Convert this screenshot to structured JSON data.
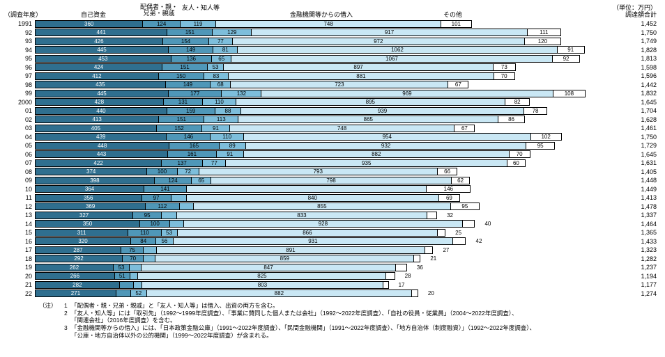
{
  "meta": {
    "max_value": 1900,
    "unit_label": "（単位：万円）",
    "total_header": "調達額合計",
    "year_header": "（調査年度）"
  },
  "categories": [
    {
      "key": "own",
      "label": "自己資金",
      "color": "#2f6f8f",
      "text": "#ffffff"
    },
    {
      "key": "family",
      "label": "配偶者・親・\n兄弟・親戚",
      "color": "#4f97b8",
      "text": "#000000"
    },
    {
      "key": "friend",
      "label": "友人・知人等",
      "color": "#7dbedb",
      "text": "#000000"
    },
    {
      "key": "bank",
      "label": "金融機関等からの借入",
      "color": "#c9e7f4",
      "text": "#000000"
    },
    {
      "key": "other",
      "label": "その他",
      "color": "#ffffff",
      "text": "#000000"
    }
  ],
  "headers_x": {
    "year": 0,
    "own": 110,
    "family": 205,
    "friend": 265,
    "bank": 430,
    "other": 640,
    "unit": 870,
    "total": 870
  },
  "rows": [
    {
      "year": "1991",
      "own": 360,
      "family": 124,
      "friend": 119,
      "bank": 748,
      "other": 101,
      "total": 1452
    },
    {
      "year": "92",
      "own": 441,
      "family": 151,
      "friend": 129,
      "bank": 917,
      "other": 111,
      "total": 1750
    },
    {
      "year": "93",
      "own": 426,
      "family": 154,
      "friend": 77,
      "bank": 972,
      "other": 120,
      "total": 1749
    },
    {
      "year": "94",
      "own": 445,
      "family": 149,
      "friend": 81,
      "bank": 1062,
      "other": 91,
      "total": 1828
    },
    {
      "year": "95",
      "own": 453,
      "family": 136,
      "friend": 65,
      "bank": 1067,
      "other": 92,
      "total": 1813
    },
    {
      "year": "96",
      "own": 424,
      "family": 151,
      "friend": 53,
      "bank": 897,
      "other": 73,
      "total": 1598
    },
    {
      "year": "97",
      "own": 412,
      "family": 150,
      "friend": 83,
      "bank": 881,
      "other": 70,
      "total": 1596
    },
    {
      "year": "98",
      "own": 435,
      "family": 149,
      "friend": 68,
      "bank": 723,
      "other": 67,
      "total": 1442
    },
    {
      "year": "99",
      "own": 445,
      "family": 177,
      "friend": 132,
      "bank": 969,
      "other": 108,
      "total": 1832
    },
    {
      "year": "2000",
      "own": 428,
      "family": 131,
      "friend": 110,
      "bank": 895,
      "other": 82,
      "total": 1645
    },
    {
      "year": "01",
      "own": 440,
      "family": 159,
      "friend": 88,
      "bank": 939,
      "other": 78,
      "total": 1704
    },
    {
      "year": "02",
      "own": 413,
      "family": 151,
      "friend": 113,
      "bank": 865,
      "other": 86,
      "total": 1628
    },
    {
      "year": "03",
      "own": 405,
      "family": 152,
      "friend": 91,
      "bank": 748,
      "other": 67,
      "total": 1461
    },
    {
      "year": "04",
      "own": 439,
      "family": 146,
      "friend": 110,
      "bank": 954,
      "other": 102,
      "total": 1750
    },
    {
      "year": "05",
      "own": 448,
      "family": 165,
      "friend": 89,
      "bank": 932,
      "other": 95,
      "total": 1729
    },
    {
      "year": "06",
      "own": 443,
      "family": 161,
      "friend": 91,
      "bank": 882,
      "other": 70,
      "total": 1645
    },
    {
      "year": "07",
      "own": 422,
      "family": 137,
      "friend": 77,
      "bank": 935,
      "other": 60,
      "total": 1631
    },
    {
      "year": "08",
      "own": 374,
      "family": 100,
      "friend": 72,
      "bank": 793,
      "other": 66,
      "total": 1405
    },
    {
      "year": "09",
      "own": 398,
      "family": 124,
      "friend": 65,
      "bank": 798,
      "other": 62,
      "total": 1448
    },
    {
      "year": "10",
      "own": 364,
      "family": 141,
      "friend": null,
      "bank": null,
      "other": 146,
      "total": 1449,
      "bank_fill": 798
    },
    {
      "year": "11",
      "own": 356,
      "family": 97,
      "friend": null,
      "bank": 840,
      "other": 69,
      "total": 1413,
      "friend_fill": 51
    },
    {
      "year": "12",
      "own": 369,
      "family": 112,
      "friend": 47,
      "bank": 855,
      "other": 95,
      "total": 1478
    },
    {
      "year": "13",
      "own": 327,
      "family": 95,
      "friend": 50,
      "bank": 833,
      "other": 32,
      "total": 1337
    },
    {
      "year": "14",
      "own": 350,
      "family": 100,
      "friend": 45,
      "bank": 928,
      "other": 40,
      "total": 1464
    },
    {
      "year": "15",
      "own": 311,
      "family": 110,
      "friend": 53,
      "bank": 866,
      "other": 25,
      "total": 1365
    },
    {
      "year": "16",
      "own": 320,
      "family": 84,
      "friend": 56,
      "bank": 931,
      "other": 42,
      "total": 1433
    },
    {
      "year": "17",
      "own": 287,
      "family": 75,
      "friend": 44,
      "bank": 891,
      "other": 27,
      "total": 1323
    },
    {
      "year": "18",
      "own": 292,
      "family": 70,
      "friend": 40,
      "bank": 859,
      "other": 21,
      "total": 1282
    },
    {
      "year": "19",
      "own": 262,
      "family": 53,
      "friend": 39,
      "bank": 847,
      "other": 36,
      "total": 1237
    },
    {
      "year": "20",
      "own": 266,
      "family": 51,
      "friend": 27,
      "bank": 825,
      "other": 28,
      "total": 1194
    },
    {
      "year": "21",
      "own": 282,
      "family": 46,
      "friend": 28,
      "bank": 803,
      "other": 17,
      "total": 1177
    },
    {
      "year": "22",
      "own": 271,
      "family": 49,
      "friend": 52,
      "bank": 882,
      "other": 20,
      "total": 1274
    }
  ],
  "notes": {
    "head": "（注）",
    "items": [
      {
        "num": "1",
        "text": "「配偶者・親・兄弟・親戚」と「友人・知人等」は借入、出資の両方を含む。"
      },
      {
        "num": "2",
        "text": "「友人・知人等」には「取引先」（1992～1999年度調査）、「事業に賛同した個人または会社」（1992～2022年度調査）、「自社の役員・従業員」（2004～2022年度調査）、\n「関連会社」（2016年度調査）を含む。"
      },
      {
        "num": "3",
        "text": "「金融機関等からの借入」には、「日本政策金融公庫」（1991～2022年度調査）、「民間金融機関」（1991～2022年度調査）、「地方自治体（制度融資）」（1992～2022年度調査）、\n「公庫・地方自治体以外の公的機関」（1999～2022年度調査）が含まれる。"
      }
    ]
  }
}
